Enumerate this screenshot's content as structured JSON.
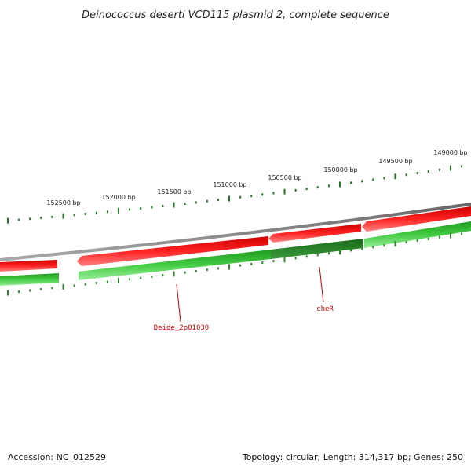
{
  "title": "Deinococcus deserti VCD115 plasmid 2, complete sequence",
  "footer": {
    "accession": "Accession: NC_012529",
    "summary": "Topology: circular; Length: 314,317 bp; Genes: 250"
  },
  "ruler": {
    "labels": [
      "152500 bp",
      "152000 bp",
      "151500 bp",
      "151000 bp",
      "150500 bp",
      "150000 bp",
      "149500 bp",
      "149000 bp"
    ]
  },
  "genes": {
    "labels": [
      "Deide_2p01030",
      "cheR"
    ]
  },
  "colors": {
    "backbone": "#808080",
    "forward": "#ee1111",
    "reverse": "#33bb33",
    "ruler_inner": "#2a8a2a",
    "ruler_outer": "#1e7a1e",
    "gene_label": "#cc0000"
  }
}
